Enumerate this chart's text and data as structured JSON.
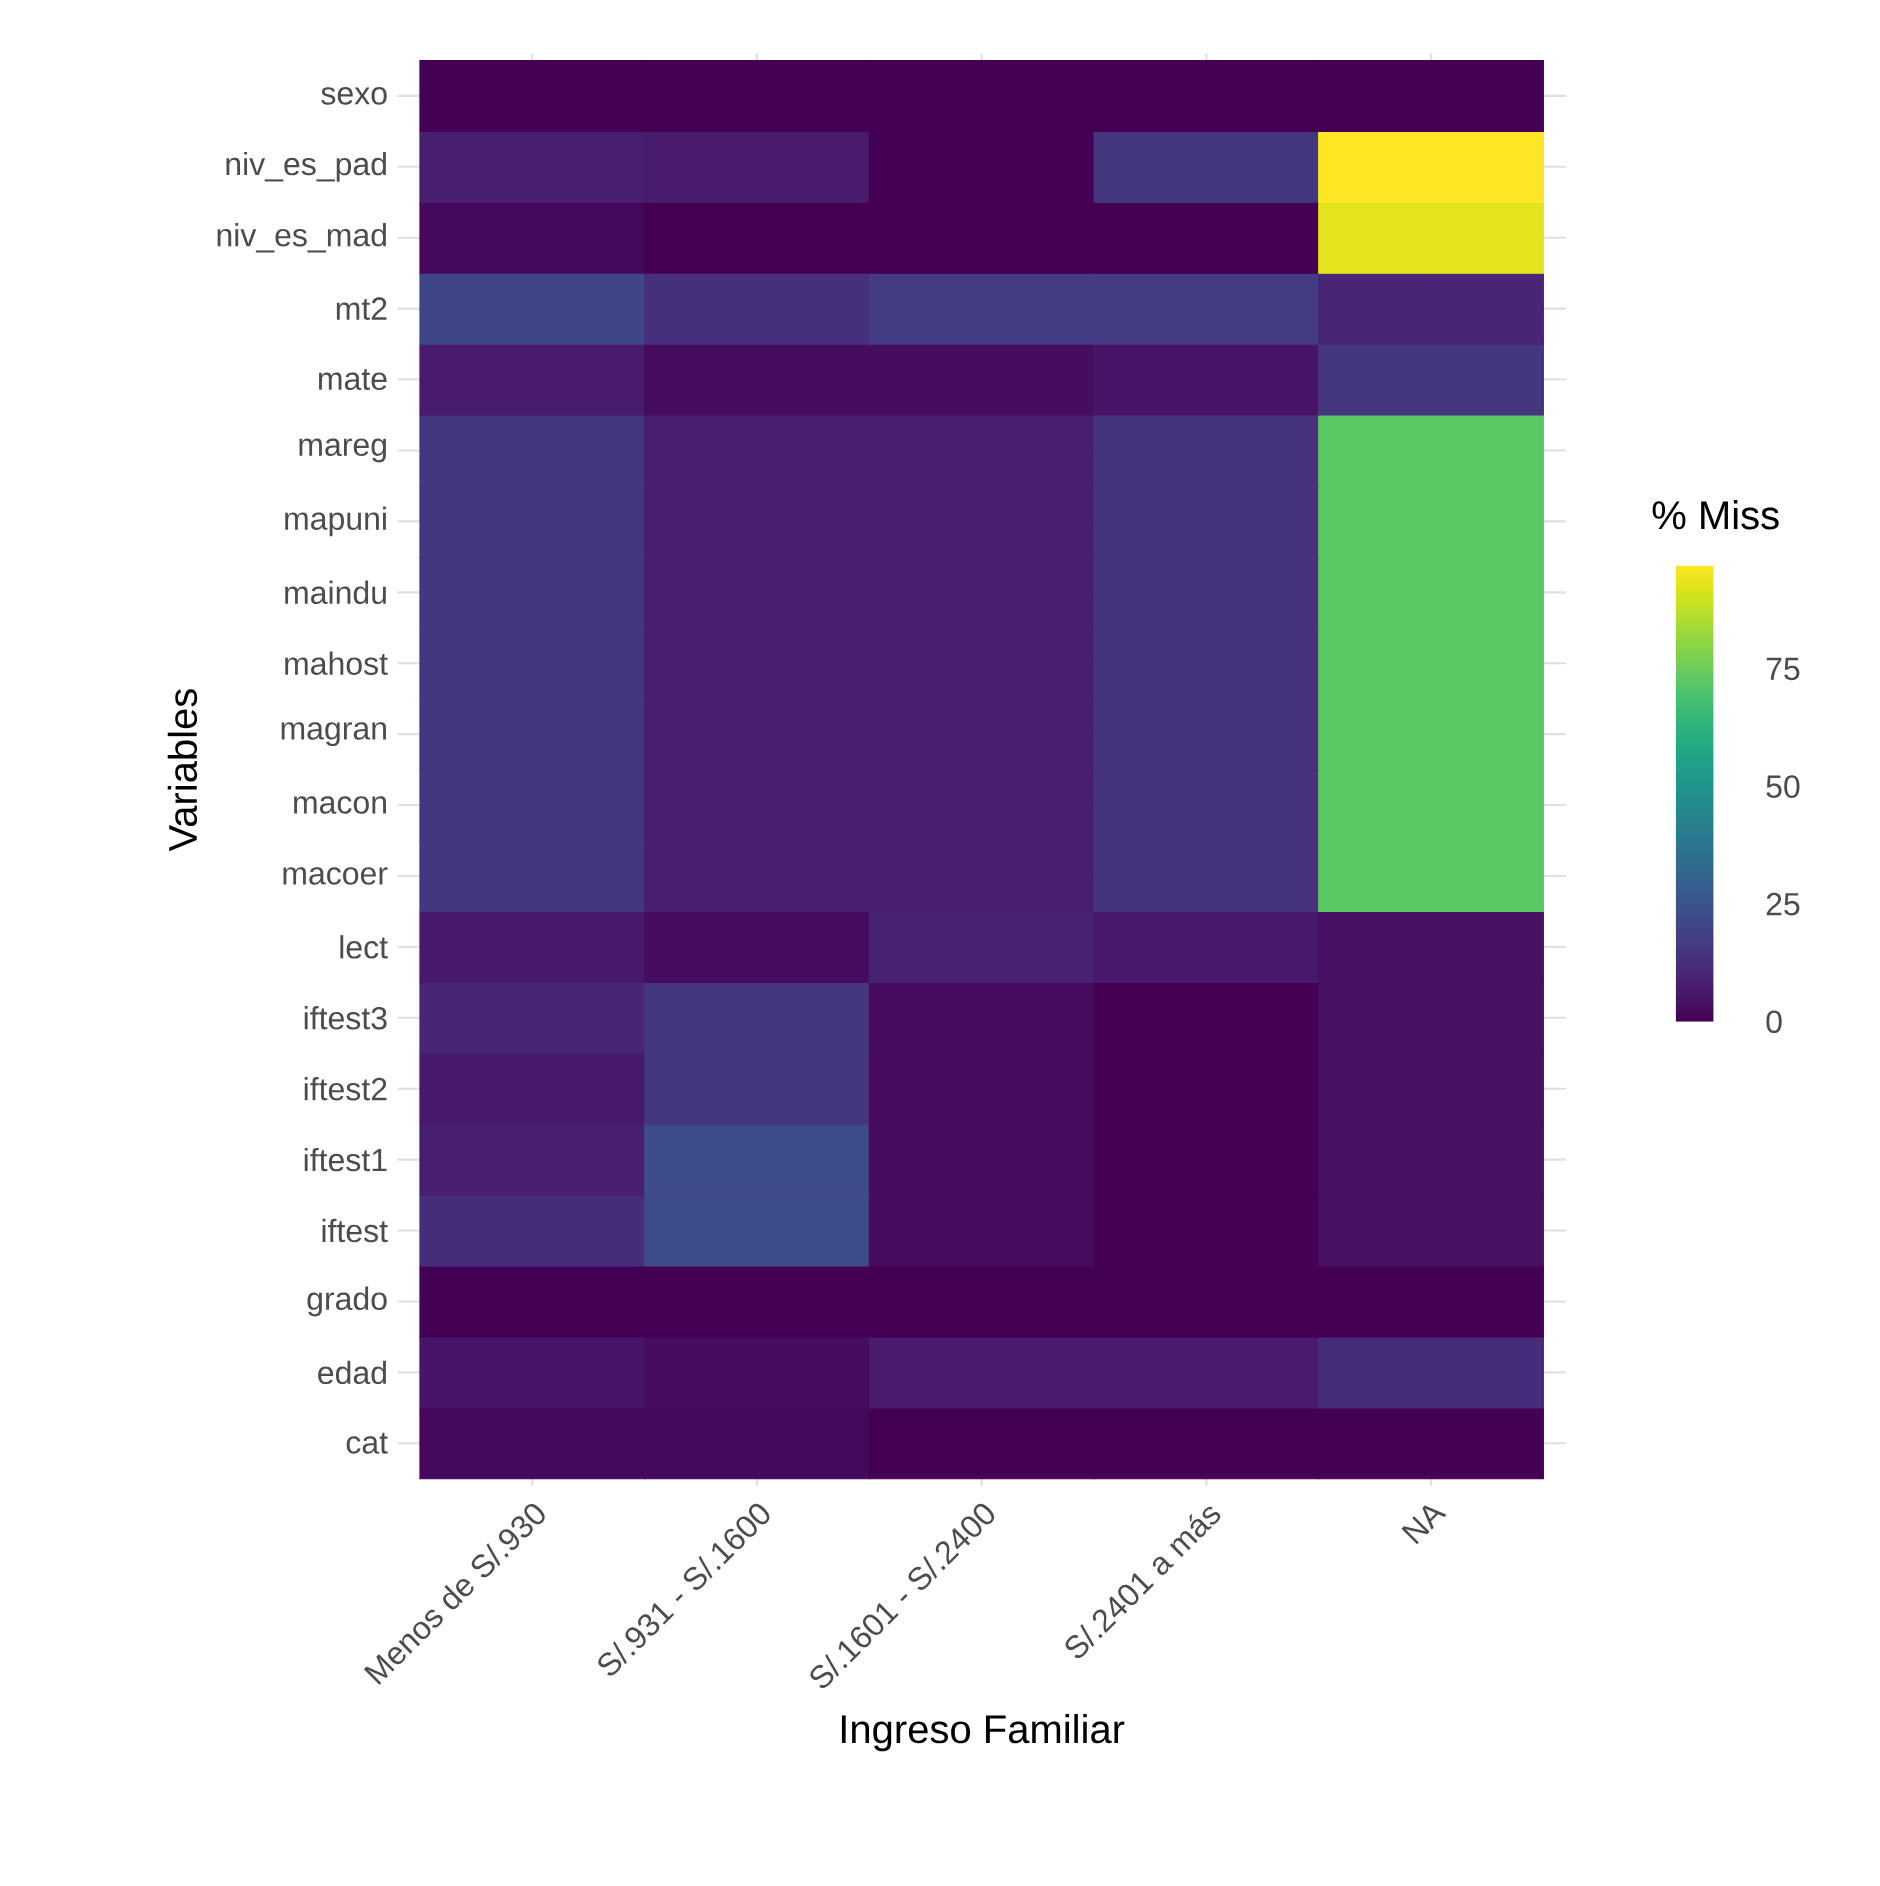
{
  "chart_data": {
    "type": "heatmap",
    "xlabel": "Ingreso Familiar",
    "ylabel": "Variables",
    "clabel": "% Miss",
    "categories": [
      "Menos de S/.930",
      "S/.931 - S/.1600",
      "S/.1601 - S/.2400",
      "S/.2401 a más",
      "NA"
    ],
    "y_categories": [
      "sexo",
      "niv_es_pad",
      "niv_es_mad",
      "mt2",
      "mate",
      "mareg",
      "mapuni",
      "maindu",
      "mahost",
      "magran",
      "macon",
      "macoer",
      "lect",
      "iftest3",
      "iftest2",
      "iftest1",
      "iftest",
      "grado",
      "edad",
      "cat"
    ],
    "cells": [
      [
        0,
        0,
        0,
        0,
        0
      ],
      [
        8,
        7,
        0,
        15,
        97
      ],
      [
        2,
        0,
        0,
        0,
        93
      ],
      [
        20,
        13,
        17,
        17,
        10
      ],
      [
        7,
        3,
        3,
        5,
        15
      ],
      [
        15,
        8,
        8,
        14,
        72
      ],
      [
        15,
        8,
        8,
        14,
        72
      ],
      [
        15,
        8,
        8,
        14,
        72
      ],
      [
        15,
        8,
        8,
        14,
        72
      ],
      [
        15,
        8,
        8,
        14,
        72
      ],
      [
        15,
        8,
        8,
        14,
        72
      ],
      [
        15,
        8,
        8,
        14,
        72
      ],
      [
        6,
        3,
        9,
        6,
        4
      ],
      [
        10,
        15,
        3,
        0,
        4
      ],
      [
        6,
        15,
        3,
        0,
        4
      ],
      [
        8,
        22,
        3,
        0,
        4
      ],
      [
        12,
        22,
        3,
        0,
        4
      ],
      [
        0,
        0,
        0,
        0,
        0
      ],
      [
        5,
        3,
        7,
        7,
        12
      ],
      [
        2,
        2,
        0,
        0,
        0
      ]
    ],
    "clim": [
      0,
      97
    ],
    "cticks": [
      0,
      25,
      50,
      75
    ],
    "grid": true
  }
}
